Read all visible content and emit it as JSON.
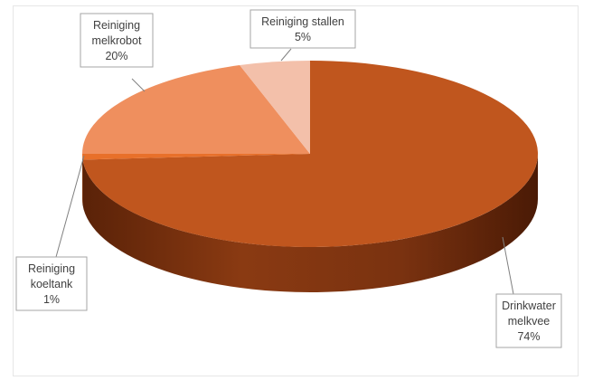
{
  "chart_data": {
    "type": "pie",
    "title": "",
    "three_d": true,
    "slices": [
      {
        "label_lines": [
          "Drinkwater",
          "melkvee"
        ],
        "value": 74,
        "value_label": "74%",
        "color": "#c0561e"
      },
      {
        "label_lines": [
          "Reiniging",
          "koeltank"
        ],
        "value": 1,
        "value_label": "1%",
        "color": "#e8702a"
      },
      {
        "label_lines": [
          "Reiniging",
          "melkrobot"
        ],
        "value": 20,
        "value_label": "20%",
        "color": "#ef8f5e"
      },
      {
        "label_lines": [
          "Reiniging stallen"
        ],
        "value": 5,
        "value_label": "5%",
        "color": "#f3c0aa"
      }
    ]
  }
}
